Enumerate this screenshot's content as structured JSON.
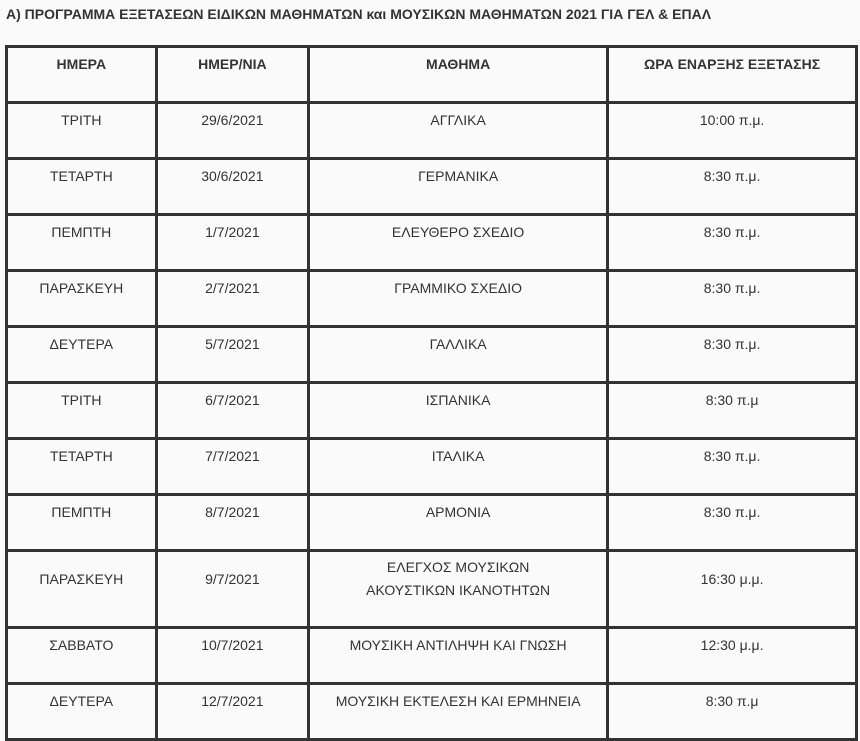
{
  "title": "Α) ΠΡΟΓΡΑΜΜΑ ΕΞΕΤΑΣΕΩΝ ΕΙΔΙΚΩΝ ΜΑΘΗΜΑΤΩΝ και ΜΟΥΣΙΚΩΝ ΜΑΘΗΜΑΤΩΝ 2021 ΓΙΑ ΓΕΛ & ΕΠΑΛ",
  "headers": [
    "ΗΜΕΡΑ",
    "ΗΜΕΡ/ΝΙΑ",
    "ΜΑΘΗΜΑ",
    "ΩΡΑ ΕΝΑΡΞΗΣ ΕΞΕΤΑΣΗΣ"
  ],
  "rows": [
    [
      "ΤΡΙΤΗ",
      "29/6/2021",
      "ΑΓΓΛΙΚΑ",
      "10:00 π.μ."
    ],
    [
      "ΤΕΤΑΡΤΗ",
      "30/6/2021",
      "ΓΕΡΜΑΝΙΚΑ",
      "8:30 π.μ."
    ],
    [
      "ΠΕΜΠΤΗ",
      "1/7/2021",
      "ΕΛΕΥΘΕΡΟ ΣΧΕΔΙΟ",
      "8:30 π.μ."
    ],
    [
      "ΠΑΡΑΣΚΕΥΗ",
      "2/7/2021",
      "ΓΡΑΜΜΙΚΟ ΣΧΕΔΙΟ",
      "8:30 π.μ."
    ],
    [
      "ΔΕΥΤΕΡΑ",
      "5/7/2021",
      "ΓΑΛΛΙΚΑ",
      "8:30 π.μ."
    ],
    [
      "ΤΡΙΤΗ",
      "6/7/2021",
      "ΙΣΠΑΝΙΚΑ",
      "8:30 π.μ"
    ],
    [
      "ΤΕΤΑΡΤΗ",
      "7/7/2021",
      "ΙΤΑΛΙΚΑ",
      "8:30 π.μ."
    ],
    [
      "ΠΕΜΠΤΗ",
      "8/7/2021",
      "ΑΡΜΟΝΙΑ",
      "8:30 π.μ."
    ],
    [
      "ΠΑΡΑΣΚΕΥΗ",
      "9/7/2021",
      "ΕΛΕΓΧΟΣ ΜΟΥΣΙΚΩΝ ΑΚΟΥΣΤΙΚΩΝ ΙΚΑΝΟΤΗΤΩΝ",
      "16:30 μ.μ."
    ],
    [
      "ΣΑΒΒΑΤΟ",
      "10/7/2021",
      "ΜΟΥΣΙΚΗ ΑΝΤΙΛΗΨΗ ΚΑΙ ΓΝΩΣΗ",
      "12:30 μ.μ."
    ],
    [
      "ΔΕΥΤΕΡΑ",
      "12/7/2021",
      "ΜΟΥΣΙΚΗ ΕΚΤΕΛΕΣΗ ΚΑΙ ΕΡΜΗΝΕΙΑ",
      "8:30 π.μ"
    ]
  ]
}
